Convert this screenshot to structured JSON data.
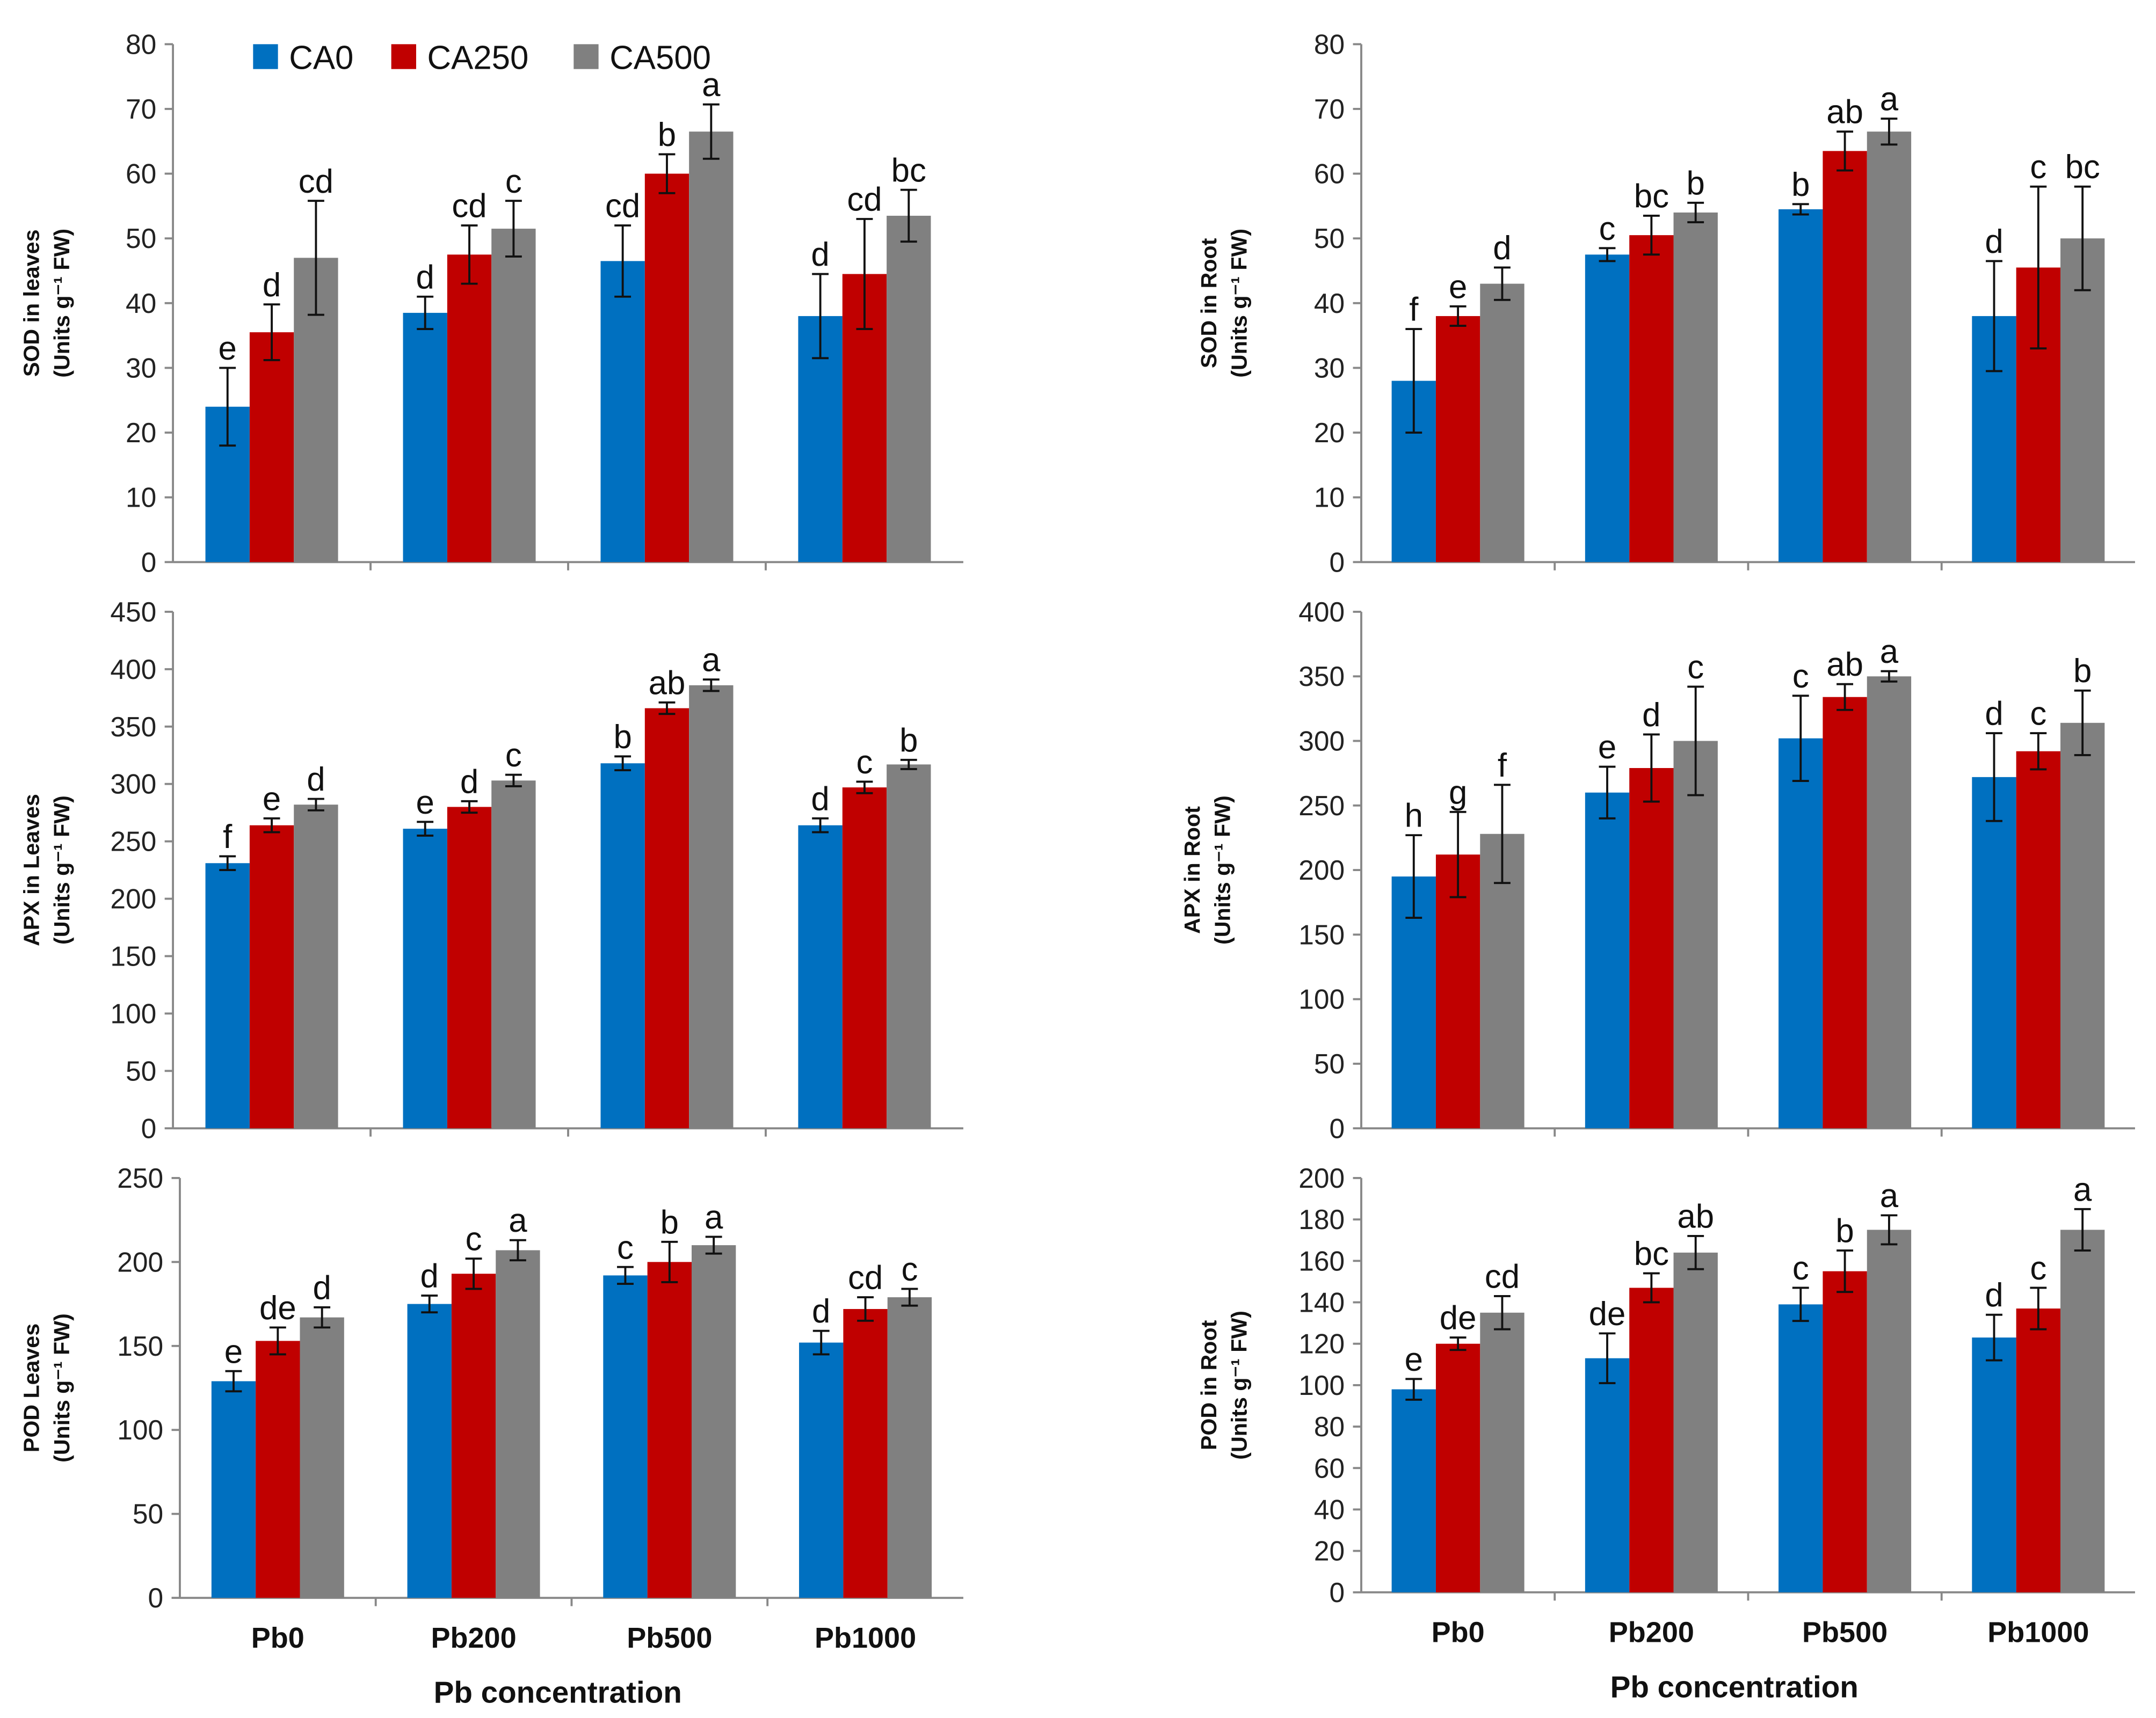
{
  "chart_data": {
    "type": "bar",
    "categories": [
      "Pb0",
      "Pb200",
      "Pb500",
      "Pb1000"
    ],
    "xlabel": "Pb concentration",
    "legend": {
      "placement": "top-left (first panel)",
      "entries": [
        "CA0",
        "CA250",
        "CA500"
      ]
    },
    "colors": [
      "#0070C0",
      "#C00000",
      "#808080"
    ],
    "panels": [
      {
        "ylabel_line1": "SOD in leaves",
        "ylabel_line2": "(Units g⁻¹ FW)",
        "ylim": [
          0,
          80
        ],
        "yticks": [
          0,
          10,
          20,
          30,
          40,
          50,
          60,
          70,
          80
        ],
        "series": [
          {
            "name": "CA0",
            "values": [
              24,
              38.5,
              46.5,
              38
            ],
            "errors": [
              6,
              2.5,
              5.5,
              6.5
            ],
            "letters": [
              "e",
              "d",
              "cd",
              "d"
            ]
          },
          {
            "name": "CA250",
            "values": [
              35.5,
              47.5,
              60,
              44.5
            ],
            "errors": [
              4.3,
              4.5,
              3,
              8.5
            ],
            "letters": [
              "d",
              "cd",
              "b",
              "cd"
            ]
          },
          {
            "name": "CA500",
            "values": [
              47,
              51.5,
              66.5,
              53.5
            ],
            "errors": [
              8.8,
              4.3,
              4.2,
              4
            ],
            "letters": [
              "cd",
              "c",
              "a",
              "bc"
            ]
          }
        ]
      },
      {
        "ylabel_line1": "SOD in Root",
        "ylabel_line2": "(Units g⁻¹ FW)",
        "ylim": [
          0,
          80
        ],
        "yticks": [
          0,
          10,
          20,
          30,
          40,
          50,
          60,
          70,
          80
        ],
        "series": [
          {
            "name": "CA0",
            "values": [
              28,
              47.5,
              54.5,
              38
            ],
            "errors": [
              8,
              1,
              0.8,
              8.5
            ],
            "letters": [
              "f",
              "c",
              "b",
              "d"
            ]
          },
          {
            "name": "CA250",
            "values": [
              38,
              50.5,
              63.5,
              45.5
            ],
            "errors": [
              1.5,
              3,
              3,
              12.5
            ],
            "letters": [
              "e",
              "bc",
              "ab",
              "c"
            ]
          },
          {
            "name": "CA500",
            "values": [
              43,
              54,
              66.5,
              50
            ],
            "errors": [
              2.5,
              1.5,
              2,
              8
            ],
            "letters": [
              "d",
              "b",
              "a",
              "bc"
            ]
          }
        ]
      },
      {
        "ylabel_line1": "APX in Leaves",
        "ylabel_line2": "(Units g⁻¹ FW)",
        "ylim": [
          0,
          450
        ],
        "yticks": [
          0,
          50,
          100,
          150,
          200,
          250,
          300,
          350,
          400,
          450
        ],
        "series": [
          {
            "name": "CA0",
            "values": [
              231,
              261,
              318,
              264
            ],
            "errors": [
              6,
              6,
              6,
              6
            ],
            "letters": [
              "f",
              "e",
              "b",
              "d"
            ]
          },
          {
            "name": "CA250",
            "values": [
              264,
              280,
              366,
              297
            ],
            "errors": [
              6,
              5,
              5,
              5
            ],
            "letters": [
              "e",
              "d",
              "ab",
              "c"
            ]
          },
          {
            "name": "CA500",
            "values": [
              282,
              303,
              386,
              317
            ],
            "errors": [
              5,
              5,
              5,
              4
            ],
            "letters": [
              "d",
              "c",
              "a",
              "b"
            ]
          }
        ]
      },
      {
        "ylabel_line1": "APX in Root",
        "ylabel_line2": "(Units g⁻¹ FW)",
        "ylim": [
          0,
          400
        ],
        "yticks": [
          0,
          50,
          100,
          150,
          200,
          250,
          300,
          350,
          400
        ],
        "series": [
          {
            "name": "CA0",
            "values": [
              195,
              260,
              302,
              272
            ],
            "errors": [
              32,
              20,
              33,
              34
            ],
            "letters": [
              "h",
              "e",
              "c",
              "d"
            ]
          },
          {
            "name": "CA250",
            "values": [
              212,
              279,
              334,
              292
            ],
            "errors": [
              33,
              26,
              10,
              14
            ],
            "letters": [
              "g",
              "d",
              "ab",
              "c"
            ]
          },
          {
            "name": "CA500",
            "values": [
              228,
              300,
              350,
              314
            ],
            "errors": [
              38,
              42,
              4,
              25
            ],
            "letters": [
              "f",
              "c",
              "a",
              "b"
            ]
          }
        ]
      },
      {
        "ylabel_line1": "POD Leaves",
        "ylabel_line2": "(Units g⁻¹ FW)",
        "ylim": [
          0,
          250
        ],
        "yticks": [
          0,
          50,
          100,
          150,
          200,
          250
        ],
        "series": [
          {
            "name": "CA0",
            "values": [
              129,
              175,
              192,
              152
            ],
            "errors": [
              6,
              5,
              5,
              7
            ],
            "letters": [
              "e",
              "d",
              "c",
              "d"
            ]
          },
          {
            "name": "CA250",
            "values": [
              153,
              193,
              200,
              172
            ],
            "errors": [
              8,
              9,
              12,
              7
            ],
            "letters": [
              "de",
              "c",
              "b",
              "cd"
            ]
          },
          {
            "name": "CA500",
            "values": [
              167,
              207,
              210,
              179
            ],
            "errors": [
              6,
              6,
              5,
              5
            ],
            "letters": [
              "d",
              "a",
              "a",
              "c"
            ]
          }
        ]
      },
      {
        "ylabel_line1": "POD in Root",
        "ylabel_line2": "(Units g⁻¹ FW)",
        "ylim": [
          0,
          200
        ],
        "yticks": [
          0,
          20,
          40,
          60,
          80,
          100,
          120,
          140,
          160,
          180,
          200
        ],
        "series": [
          {
            "name": "CA0",
            "values": [
              98,
              113,
              139,
              123
            ],
            "errors": [
              5,
              12,
              8,
              11
            ],
            "letters": [
              "e",
              "de",
              "c",
              "d"
            ]
          },
          {
            "name": "CA250",
            "values": [
              120,
              147,
              155,
              137
            ],
            "errors": [
              3,
              7,
              10,
              10
            ],
            "letters": [
              "de",
              "bc",
              "b",
              "c"
            ]
          },
          {
            "name": "CA500",
            "values": [
              135,
              164,
              175,
              175
            ],
            "errors": [
              8,
              8,
              7,
              10
            ],
            "letters": [
              "cd",
              "ab",
              "a",
              "a"
            ]
          }
        ]
      }
    ]
  }
}
